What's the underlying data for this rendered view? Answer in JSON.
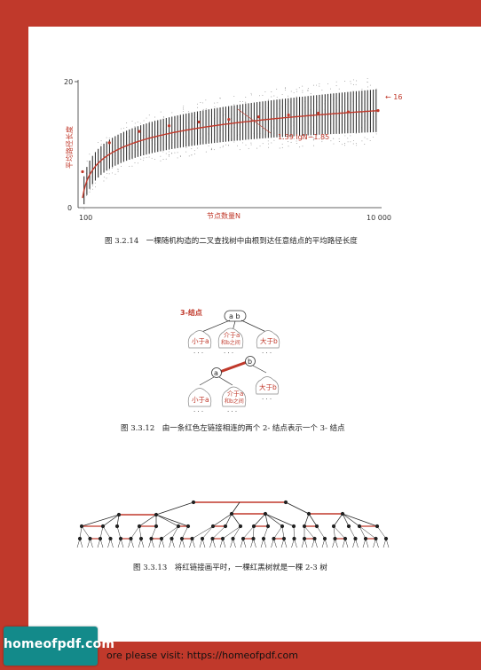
{
  "footer": {
    "text": "ore please visit: https://homeofpdf.com"
  },
  "logo": {
    "text": "homeofpdf.com"
  },
  "fig1": {
    "caption": "图 3.2.14　一棵随机构造的二叉查找树中由根到达任意结点的平均路径长度",
    "formula": "1.39 lgN−1.85",
    "end_label": "← 16",
    "chart_data": {
      "type": "scatter",
      "xlabel": "节点数量N",
      "ylabel": "平均路径长度",
      "x_ticks": [
        "100",
        "10 000"
      ],
      "y_ticks": [
        "0",
        "20"
      ],
      "xlim": [
        100,
        10000
      ],
      "ylim": [
        0,
        20
      ],
      "series": [
        {
          "name": "",
          "x": [
            100,
            1000,
            2000,
            3000,
            4000,
            5000,
            6000,
            7000,
            8000,
            9000,
            10000
          ],
          "y": [
            5.7,
            10.3,
            12.1,
            13.0,
            13.6,
            14.0,
            14.4,
            14.7,
            15.0,
            15.2,
            15.4
          ]
        }
      ]
    }
  },
  "fig2": {
    "caption": "图 3.3.12　由一条红色左链接相连的两个 2- 结点表示一个 3- 结点",
    "label_3node": "3-结点",
    "key_a": "a",
    "key_b": "b",
    "keys_ab": "a b",
    "less_a": "小于a",
    "between_1": "介于a",
    "between_2": "和b之间",
    "greater_b": "大于b",
    "dots": ". . ."
  },
  "fig3": {
    "caption": "图 3.3.13　将红链接画平时，一棵红黑树就是一棵 2-3 树"
  }
}
